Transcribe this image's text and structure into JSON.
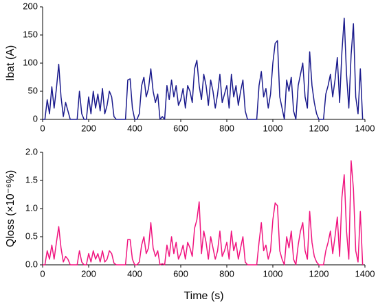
{
  "chart_data": [
    {
      "type": "line",
      "ylabel": "Ibat (A)",
      "x": [
        0,
        10,
        20,
        30,
        40,
        50,
        60,
        70,
        80,
        90,
        100,
        110,
        120,
        130,
        140,
        150,
        160,
        170,
        180,
        190,
        200,
        210,
        220,
        230,
        240,
        250,
        260,
        270,
        280,
        290,
        300,
        310,
        320,
        330,
        340,
        350,
        360,
        370,
        380,
        390,
        400,
        410,
        420,
        430,
        440,
        450,
        460,
        470,
        480,
        490,
        500,
        510,
        520,
        530,
        540,
        550,
        560,
        570,
        580,
        590,
        600,
        610,
        620,
        630,
        640,
        650,
        660,
        670,
        680,
        690,
        700,
        710,
        720,
        730,
        740,
        750,
        760,
        770,
        780,
        790,
        800,
        810,
        820,
        830,
        840,
        850,
        860,
        870,
        880,
        890,
        900,
        910,
        920,
        930,
        940,
        950,
        960,
        970,
        980,
        990,
        1000,
        1010,
        1020,
        1030,
        1040,
        1050,
        1060,
        1070,
        1080,
        1090,
        1100,
        1110,
        1120,
        1130,
        1140,
        1150,
        1160,
        1170,
        1180,
        1190,
        1200,
        1210,
        1220,
        1230,
        1240,
        1250,
        1260,
        1270,
        1280,
        1290,
        1300,
        1310,
        1320,
        1330,
        1340,
        1350,
        1360,
        1370,
        1380,
        1390
      ],
      "series": [
        {
          "name": "Ibat",
          "color": "#1a1a8c",
          "values": [
            0,
            0,
            35,
            10,
            58,
            20,
            55,
            98,
            40,
            5,
            30,
            15,
            0,
            0,
            0,
            0,
            50,
            10,
            0,
            0,
            40,
            10,
            50,
            20,
            45,
            15,
            55,
            10,
            25,
            50,
            40,
            5,
            0,
            0,
            0,
            0,
            0,
            70,
            72,
            20,
            0,
            0,
            10,
            60,
            75,
            40,
            55,
            90,
            50,
            30,
            45,
            0,
            5,
            0,
            60,
            35,
            70,
            40,
            60,
            25,
            35,
            55,
            20,
            60,
            50,
            30,
            90,
            105,
            60,
            35,
            80,
            60,
            25,
            70,
            50,
            20,
            45,
            80,
            30,
            45,
            60,
            20,
            80,
            40,
            60,
            25,
            50,
            70,
            15,
            0,
            0,
            0,
            0,
            0,
            60,
            85,
            40,
            55,
            20,
            45,
            100,
            135,
            140,
            40,
            20,
            0,
            70,
            50,
            75,
            15,
            0,
            60,
            80,
            100,
            40,
            20,
            120,
            60,
            30,
            10,
            0,
            0,
            0,
            45,
            60,
            80,
            40,
            70,
            110,
            30,
            120,
            180,
            80,
            20,
            115,
            170,
            40,
            10,
            90,
            0
          ]
        }
      ],
      "xlim": [
        0,
        1400
      ],
      "xticks": [
        0,
        200,
        400,
        600,
        800,
        1000,
        1200,
        1400
      ],
      "ylim": [
        0,
        200
      ],
      "yticks": [
        0,
        50,
        100,
        150,
        200
      ]
    },
    {
      "type": "line",
      "ylabel": "Qloss (×10⁻⁶%)",
      "xlabel": "Time (s)",
      "x": [
        0,
        10,
        20,
        30,
        40,
        50,
        60,
        70,
        80,
        90,
        100,
        110,
        120,
        130,
        140,
        150,
        160,
        170,
        180,
        190,
        200,
        210,
        220,
        230,
        240,
        250,
        260,
        270,
        280,
        290,
        300,
        310,
        320,
        330,
        340,
        350,
        360,
        370,
        380,
        390,
        400,
        410,
        420,
        430,
        440,
        450,
        460,
        470,
        480,
        490,
        500,
        510,
        520,
        530,
        540,
        550,
        560,
        570,
        580,
        590,
        600,
        610,
        620,
        630,
        640,
        650,
        660,
        670,
        680,
        690,
        700,
        710,
        720,
        730,
        740,
        750,
        760,
        770,
        780,
        790,
        800,
        810,
        820,
        830,
        840,
        850,
        860,
        870,
        880,
        890,
        900,
        910,
        920,
        930,
        940,
        950,
        960,
        970,
        980,
        990,
        1000,
        1010,
        1020,
        1030,
        1040,
        1050,
        1060,
        1070,
        1080,
        1090,
        1100,
        1110,
        1120,
        1130,
        1140,
        1150,
        1160,
        1170,
        1180,
        1190,
        1200,
        1210,
        1220,
        1230,
        1240,
        1250,
        1260,
        1270,
        1280,
        1290,
        1300,
        1310,
        1320,
        1330,
        1340,
        1350,
        1360,
        1370,
        1380,
        1390
      ],
      "series": [
        {
          "name": "Qloss",
          "color": "#f0147f",
          "values": [
            0,
            0,
            0.25,
            0.1,
            0.35,
            0.1,
            0.4,
            0.68,
            0.3,
            0.05,
            0.15,
            0.1,
            0,
            0,
            0,
            0,
            0.25,
            0.05,
            0,
            0,
            0.2,
            0.05,
            0.25,
            0.1,
            0.2,
            0.05,
            0.25,
            0.05,
            0.1,
            0.25,
            0.2,
            0.03,
            0,
            0,
            0,
            0,
            0,
            0.45,
            0.45,
            0.1,
            0,
            0,
            0.05,
            0.35,
            0.5,
            0.2,
            0.3,
            0.75,
            0.3,
            0.15,
            0.25,
            0,
            0.02,
            0,
            0.35,
            0.15,
            0.5,
            0.2,
            0.4,
            0.1,
            0.2,
            0.35,
            0.1,
            0.4,
            0.3,
            0.15,
            0.65,
            0.8,
            1.12,
            0.2,
            0.6,
            0.4,
            0.1,
            0.5,
            0.3,
            0.1,
            0.25,
            0.6,
            0.15,
            0.25,
            0.4,
            0.1,
            0.6,
            0.25,
            0.4,
            0.1,
            0.3,
            0.5,
            0.05,
            0,
            0,
            0,
            0,
            0,
            0.4,
            0.75,
            0.25,
            0.35,
            0.1,
            0.25,
            0.8,
            1.1,
            1.05,
            0.25,
            0.1,
            0,
            0.5,
            0.3,
            0.6,
            0.1,
            0,
            0.35,
            0.6,
            0.75,
            0.25,
            0.1,
            0.95,
            0.4,
            0.15,
            0.05,
            0,
            0,
            0,
            0.25,
            0.4,
            0.6,
            0.2,
            0.5,
            0.85,
            0.15,
            1.2,
            1.6,
            0.6,
            0.1,
            1.85,
            1.35,
            0.25,
            0.05,
            0.95,
            0
          ]
        }
      ],
      "xlim": [
        0,
        1400
      ],
      "xticks": [
        0,
        200,
        400,
        600,
        800,
        1000,
        1200,
        1400
      ],
      "ylim": [
        0,
        2.0
      ],
      "yticks": [
        {
          "value": 0,
          "label": "0.0"
        },
        {
          "value": 0.5,
          "label": "0.5"
        },
        {
          "value": 1,
          "label": "1.0"
        },
        {
          "value": 1.5,
          "label": "1.5"
        },
        {
          "value": 2,
          "label": "2.0"
        }
      ]
    }
  ]
}
